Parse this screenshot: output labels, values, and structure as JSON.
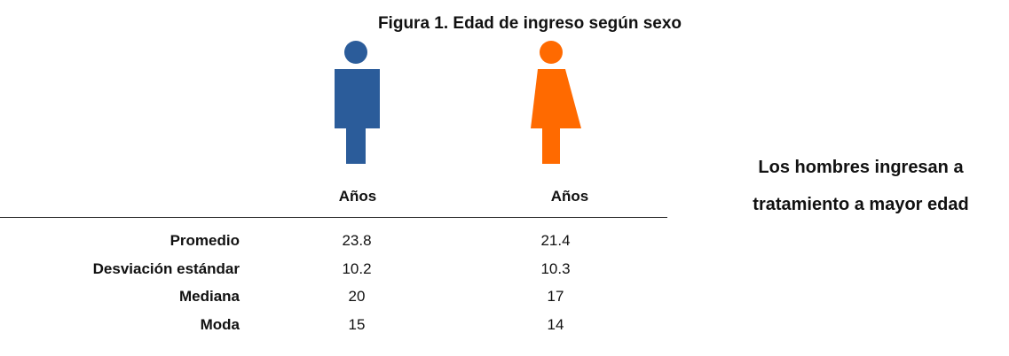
{
  "title": "Figura 1. Edad de ingreso según sexo",
  "table": {
    "columns": [
      "Años",
      "Años"
    ],
    "rows": [
      [
        "Promedio",
        23.8,
        21.4
      ],
      [
        "Desviación estándar",
        10.2,
        10.3
      ],
      [
        "Mediana",
        20,
        17
      ],
      [
        "Moda",
        15,
        14
      ]
    ]
  },
  "note": [
    "Los hombres ingresan a",
    "tratamiento a mayor edad"
  ]
}
